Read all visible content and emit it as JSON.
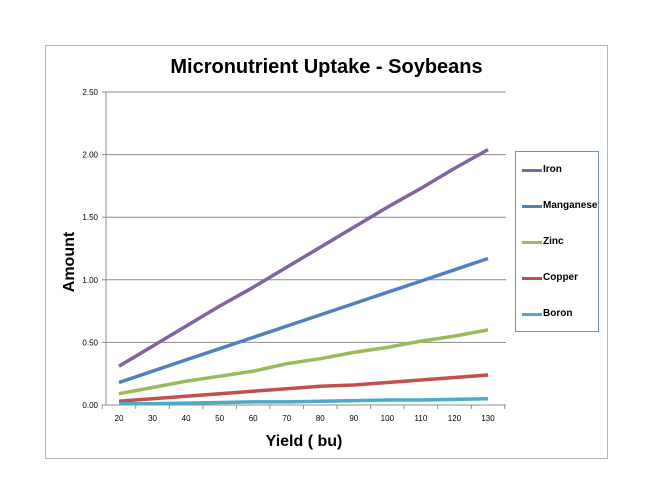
{
  "chart_data": {
    "type": "line",
    "title": "Micronutrient Uptake - Soybeans",
    "xlabel": "Yield ( bu)",
    "ylabel": "Amount",
    "x": [
      20,
      30,
      40,
      50,
      60,
      70,
      80,
      90,
      100,
      110,
      120,
      130
    ],
    "xlim": [
      20,
      130
    ],
    "ylim": [
      0,
      2.5
    ],
    "y_ticks": [
      "0.00",
      "0.50",
      "1.00",
      "1.50",
      "2.00",
      "2.50"
    ],
    "x_ticks": [
      "20",
      "30",
      "40",
      "50",
      "60",
      "70",
      "80",
      "90",
      "100",
      "110",
      "120",
      "130"
    ],
    "grid": "horizontal",
    "legend": "right",
    "series": [
      {
        "name": "Iron",
        "color": "#8064a2",
        "values": [
          0.31,
          0.47,
          0.63,
          0.79,
          0.94,
          1.1,
          1.26,
          1.42,
          1.58,
          1.73,
          1.89,
          2.04
        ]
      },
      {
        "name": "Manganese",
        "color": "#4f81bd",
        "values": [
          0.18,
          0.27,
          0.36,
          0.45,
          0.54,
          0.63,
          0.72,
          0.81,
          0.9,
          0.99,
          1.08,
          1.17
        ]
      },
      {
        "name": "Zinc",
        "color": "#9bbb59",
        "values": [
          0.09,
          0.14,
          0.19,
          0.23,
          0.27,
          0.33,
          0.37,
          0.42,
          0.46,
          0.51,
          0.55,
          0.6
        ]
      },
      {
        "name": "Copper",
        "color": "#c0504d",
        "values": [
          0.03,
          0.05,
          0.07,
          0.09,
          0.11,
          0.13,
          0.15,
          0.16,
          0.18,
          0.2,
          0.22,
          0.24
        ]
      },
      {
        "name": "Boron",
        "color": "#4bacc6",
        "values": [
          0.01,
          0.01,
          0.015,
          0.02,
          0.025,
          0.025,
          0.03,
          0.035,
          0.04,
          0.04,
          0.045,
          0.05
        ]
      }
    ]
  }
}
